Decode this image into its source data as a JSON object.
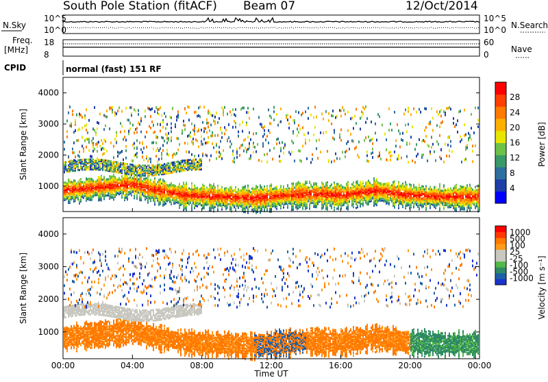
{
  "header": {
    "station": "South Pole Station (fitACF)",
    "beam": "Beam 07",
    "date": "12/Oct/2014"
  },
  "noise_panel": {
    "left_label": "N.Sky",
    "right_label": "N.Search",
    "left_ticks": [
      "10^5",
      "10^0"
    ],
    "right_ticks": [
      "10^5",
      "10^0"
    ]
  },
  "freq_panel": {
    "left_label_1": "Freq.",
    "left_label_2": "[MHz]",
    "right_label": "Nave",
    "left_ticks": [
      "18",
      "8"
    ],
    "right_ticks": [
      "60",
      "0"
    ],
    "cpid_label": "CPID",
    "cpid_value": "normal (fast) 151 RF"
  },
  "colors": {
    "power_scale": [
      "#0000ff",
      "#1e3ea8",
      "#2f6fa0",
      "#3a9a6a",
      "#6ec24a",
      "#e8e600",
      "#ffb000",
      "#ff7a00",
      "#ff4000",
      "#ff0000"
    ],
    "velocity_scale": [
      "#1a33cc",
      "#1e5fa6",
      "#2e8a64",
      "#52b848",
      "#c8c8c0",
      "#c8c8c0",
      "#ff9a1a",
      "#ff7a00",
      "#ff3a00",
      "#ff0000"
    ]
  },
  "chart_data": [
    {
      "type": "heatmap",
      "title": "",
      "xlabel": "",
      "ylabel": "Slant Range [km]",
      "xlim": [
        "00:00",
        "24:00"
      ],
      "ylim": [
        180,
        4500
      ],
      "yticks": [
        1000,
        2000,
        3000,
        4000
      ],
      "colorbar": {
        "label": "Power [dB]",
        "ticks": [
          4,
          8,
          12,
          16,
          20,
          24,
          28
        ],
        "range": [
          0,
          30
        ]
      },
      "bands": [
        {
          "description": "main echo band",
          "t_start": 0,
          "t_end": 24,
          "range_center_km": [
            900,
            1050,
            900,
            700,
            700,
            850,
            800,
            700,
            700,
            750,
            700
          ],
          "level": 24
        },
        {
          "description": "upper echo band",
          "t_start": 0,
          "t_end": 8,
          "range_center_km": [
            1650,
            1700,
            1750,
            1650
          ],
          "level": 12
        }
      ]
    },
    {
      "type": "heatmap",
      "title": "",
      "xlabel": "Time UT",
      "ylabel": "Slant Range [km]",
      "xlim": [
        "00:00",
        "24:00"
      ],
      "ylim": [
        180,
        4500
      ],
      "yticks": [
        1000,
        2000,
        3000,
        4000
      ],
      "xticks": [
        "00:00",
        "04:00",
        "08:00",
        "12:00",
        "16:00",
        "20:00",
        "00:00"
      ],
      "colorbar": {
        "label": "Velocity [m s⁻¹]",
        "ticks": [
          "1000",
          "500",
          "100",
          "25",
          "-25",
          "-100",
          "-500",
          "-1000"
        ]
      }
    }
  ],
  "x_axis_label": "Time UT",
  "x_ticks": [
    "00:00",
    "04:00",
    "08:00",
    "12:00",
    "16:00",
    "20:00",
    "00:00"
  ]
}
